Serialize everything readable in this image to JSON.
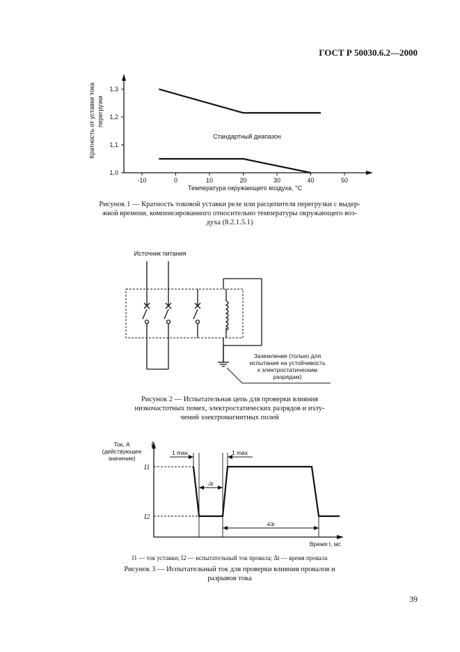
{
  "header": {
    "doc_code": "ГОСТ Р 50030.6.2—2000"
  },
  "figure1": {
    "ylabel_line1": "Кратность от уставки тока",
    "ylabel_line2": "перегрузки",
    "xlabel": "Температура окружающего воздуха, °С",
    "band_label": "Стандартный диапазон",
    "yticks": [
      "1,0",
      "1,1",
      "1,2",
      "1,3"
    ],
    "xticks": [
      "-10",
      "0",
      "10",
      "20",
      "30",
      "40",
      "50"
    ],
    "caption_lines": [
      "Рисунок 1 — Кратность токовой уставки реле или расцепителя перегрузки с выдер-",
      "жкой времени, компенсированного относительно температуры окружающего воз-",
      "духа (8.2.1.5.1)"
    ]
  },
  "chart_data": {
    "type": "line",
    "xlabel": "Температура окружающего воздуха, °С",
    "ylabel": "Кратность от уставки тока перегрузки",
    "xlim": [
      -15,
      60
    ],
    "ylim": [
      1.0,
      1.35
    ],
    "x_ticks": [
      -10,
      0,
      10,
      20,
      30,
      40,
      50
    ],
    "y_ticks": [
      1.0,
      1.1,
      1.2,
      1.3
    ],
    "annotations": [
      "Стандартный диапазон"
    ],
    "series": [
      {
        "x": [
          -5,
          20,
          43
        ],
        "y": [
          1.3,
          1.215,
          1.215
        ]
      },
      {
        "x": [
          -5,
          20,
          40
        ],
        "y": [
          1.05,
          1.05,
          1.0
        ]
      }
    ]
  },
  "figure2": {
    "source_label": "Источник питания",
    "ground_label_lines": [
      "Заземление (только для",
      "испытания на устойчивость",
      "к электростатическим",
      "разрядам)"
    ],
    "caption_lines": [
      "Рисунок 2 — Испытательная цепь для проверки влияния",
      "низкочастотных помех, электростатических разрядов и излу-",
      "чений электромагнитных полей"
    ]
  },
  "figure3": {
    "yaxis_label_lines": [
      "Ток, А",
      "(действующее",
      "значение)"
    ],
    "yaxis_symbol": "I",
    "level_labels": [
      "I1",
      "I2"
    ],
    "level_values": [
      1,
      0
    ],
    "time_label": "Время t, мс",
    "annotations": [
      "1 max",
      "1 max",
      "Δt",
      "4Δt"
    ],
    "legend_line": "I1 — ток уставки; I2 — испытательный ток провала; Δt — время провала",
    "caption_lines": [
      "Рисунок 3 — Испытательный ток  для проверки влияния провалов и",
      "разрывов тока"
    ]
  },
  "page_number": "39"
}
